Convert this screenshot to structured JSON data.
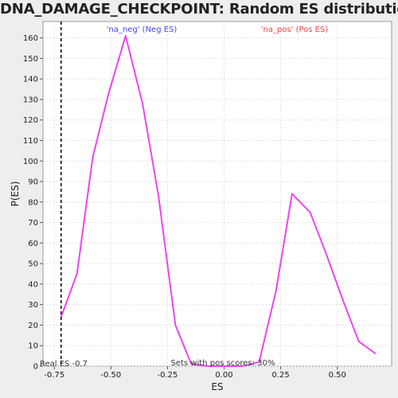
{
  "title": "DNA_DAMAGE_CHECKPOINT: Random ES distribution",
  "chart_data": {
    "type": "line",
    "title": "DNA_DAMAGE_CHECKPOINT: Random ES distribution",
    "xlabel": "ES",
    "ylabel": "P(ES)",
    "xlim": [
      -0.8,
      0.74
    ],
    "ylim": [
      0,
      168
    ],
    "xticks": [
      -0.75,
      -0.5,
      -0.25,
      0.0,
      0.25,
      0.5
    ],
    "xtick_labels": [
      "-0.75",
      "-0.50",
      "-0.25",
      "0.00",
      "0.25",
      "0.50"
    ],
    "yticks": [
      0,
      10,
      20,
      30,
      40,
      50,
      60,
      70,
      80,
      90,
      100,
      110,
      120,
      130,
      140,
      150,
      160
    ],
    "grid": true,
    "series": [
      {
        "color": "#ee44ee",
        "x": [
          -0.72,
          -0.65,
          -0.58,
          -0.51,
          -0.435,
          -0.36,
          -0.29,
          -0.215,
          -0.145,
          -0.07,
          0.0,
          0.08,
          0.155,
          0.23,
          0.3,
          0.38,
          0.45,
          0.525,
          0.595,
          0.67
        ],
        "y": [
          24,
          45,
          102,
          133,
          161,
          128,
          83,
          20,
          1,
          0,
          0,
          0,
          2,
          37,
          84,
          75,
          55,
          32,
          12,
          6
        ]
      }
    ],
    "real_es": {
      "x": -0.72,
      "label": "Real ES -0.7"
    },
    "annotations": {
      "neg": {
        "text": "'na_neg' (Neg ES)",
        "color": "#4444ee"
      },
      "pos": {
        "text": "'na_pos' (Pos ES)",
        "color": "#ee4444"
      },
      "sets": {
        "text": "Sets with pos scores: 30%",
        "color": "#333333"
      }
    }
  }
}
